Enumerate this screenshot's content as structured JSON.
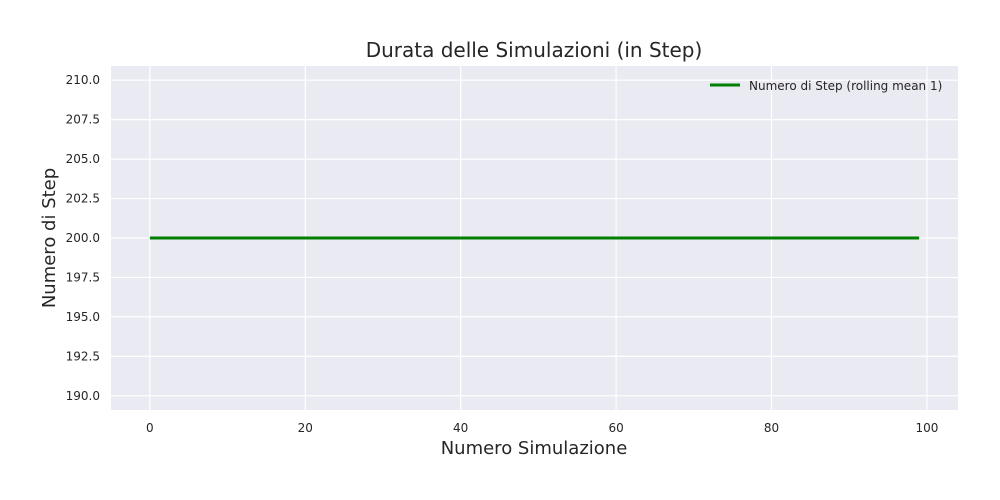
{
  "chart_data": {
    "type": "line",
    "title": "Durata delle Simulazioni (in Step)",
    "xlabel": "Numero Simulazione",
    "ylabel": "Numero di Step",
    "xlim": [
      -5,
      104
    ],
    "ylim": [
      189.1,
      210.9
    ],
    "x_ticks": [
      0,
      20,
      40,
      60,
      80,
      100
    ],
    "x_tick_labels": [
      "0",
      "20",
      "40",
      "60",
      "80",
      "100"
    ],
    "y_ticks": [
      190.0,
      192.5,
      195.0,
      197.5,
      200.0,
      202.5,
      205.0,
      207.5,
      210.0
    ],
    "y_tick_labels": [
      "190.0",
      "192.5",
      "195.0",
      "197.5",
      "200.0",
      "202.5",
      "205.0",
      "207.5",
      "210.0"
    ],
    "grid": true,
    "legend_position": "top-right",
    "series": [
      {
        "name": "Numero di Step (rolling mean 1)",
        "color": "#008000",
        "x_start": 0,
        "x_end": 99,
        "constant_value": 200
      }
    ],
    "background_color": "#eaeaf2"
  }
}
